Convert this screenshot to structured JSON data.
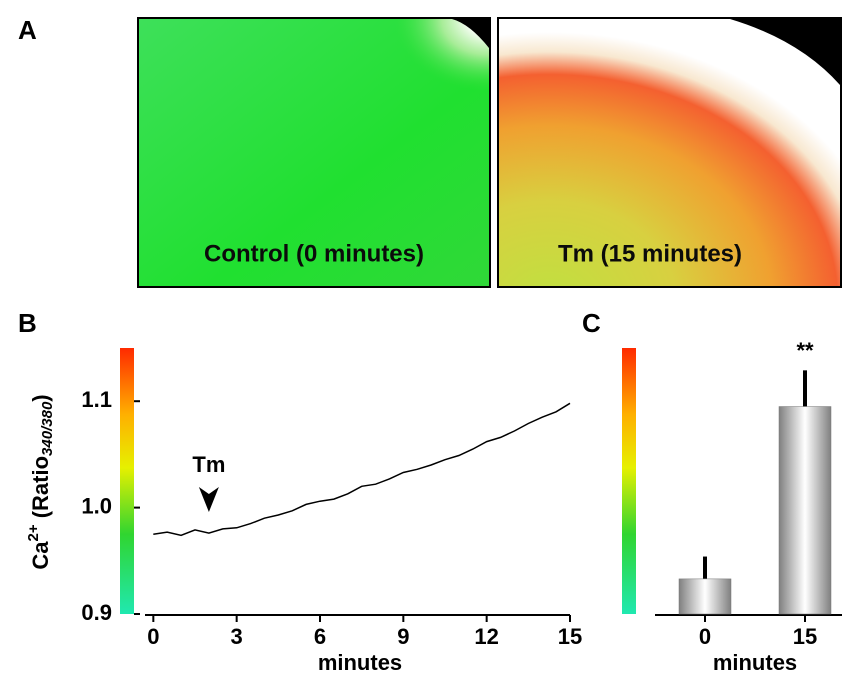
{
  "images": {
    "panel": "A",
    "items": [
      {
        "caption": "Control (0 minutes)"
      },
      {
        "caption": "Tm (15 minutes)"
      }
    ]
  },
  "chart_data": [
    {
      "type": "line",
      "panel": "B",
      "y_label": {
        "main": "Ca",
        "sup": "2+",
        "mid": " (Ratio",
        "sub": "340/380",
        "end": ")"
      },
      "x_label": "minutes",
      "annotation": {
        "text": "Tm",
        "x": 2
      },
      "color": "#000000",
      "x": [
        0,
        0.5,
        1,
        1.5,
        2,
        2.5,
        3,
        3.5,
        4,
        4.5,
        5,
        5.5,
        6,
        6.5,
        7,
        7.5,
        8,
        8.5,
        9,
        9.5,
        10,
        10.5,
        11,
        11.5,
        12,
        12.5,
        13,
        13.5,
        14,
        14.5,
        15
      ],
      "values": [
        0.975,
        0.977,
        0.974,
        0.979,
        0.976,
        0.98,
        0.981,
        0.985,
        0.99,
        0.993,
        0.997,
        1.003,
        1.006,
        1.008,
        1.013,
        1.02,
        1.022,
        1.027,
        1.033,
        1.036,
        1.04,
        1.045,
        1.049,
        1.055,
        1.062,
        1.066,
        1.072,
        1.079,
        1.085,
        1.09,
        1.098
      ],
      "xlim": [
        -0.3,
        15
      ],
      "xticks": [
        0,
        3,
        6,
        9,
        12,
        15
      ],
      "ylim": [
        0.9,
        1.15
      ],
      "yticks": [
        0.9,
        {
          "value": 1,
          "label": "1.0"
        },
        1.1
      ]
    },
    {
      "type": "bar",
      "panel": "C",
      "x_label": "minutes",
      "categories": [
        "0",
        "15"
      ],
      "values": [
        0.933,
        1.095
      ],
      "errors": [
        0.021,
        0.034
      ],
      "annotation": "**",
      "color": "#808080",
      "ylim": [
        0.9,
        1.15
      ]
    }
  ]
}
